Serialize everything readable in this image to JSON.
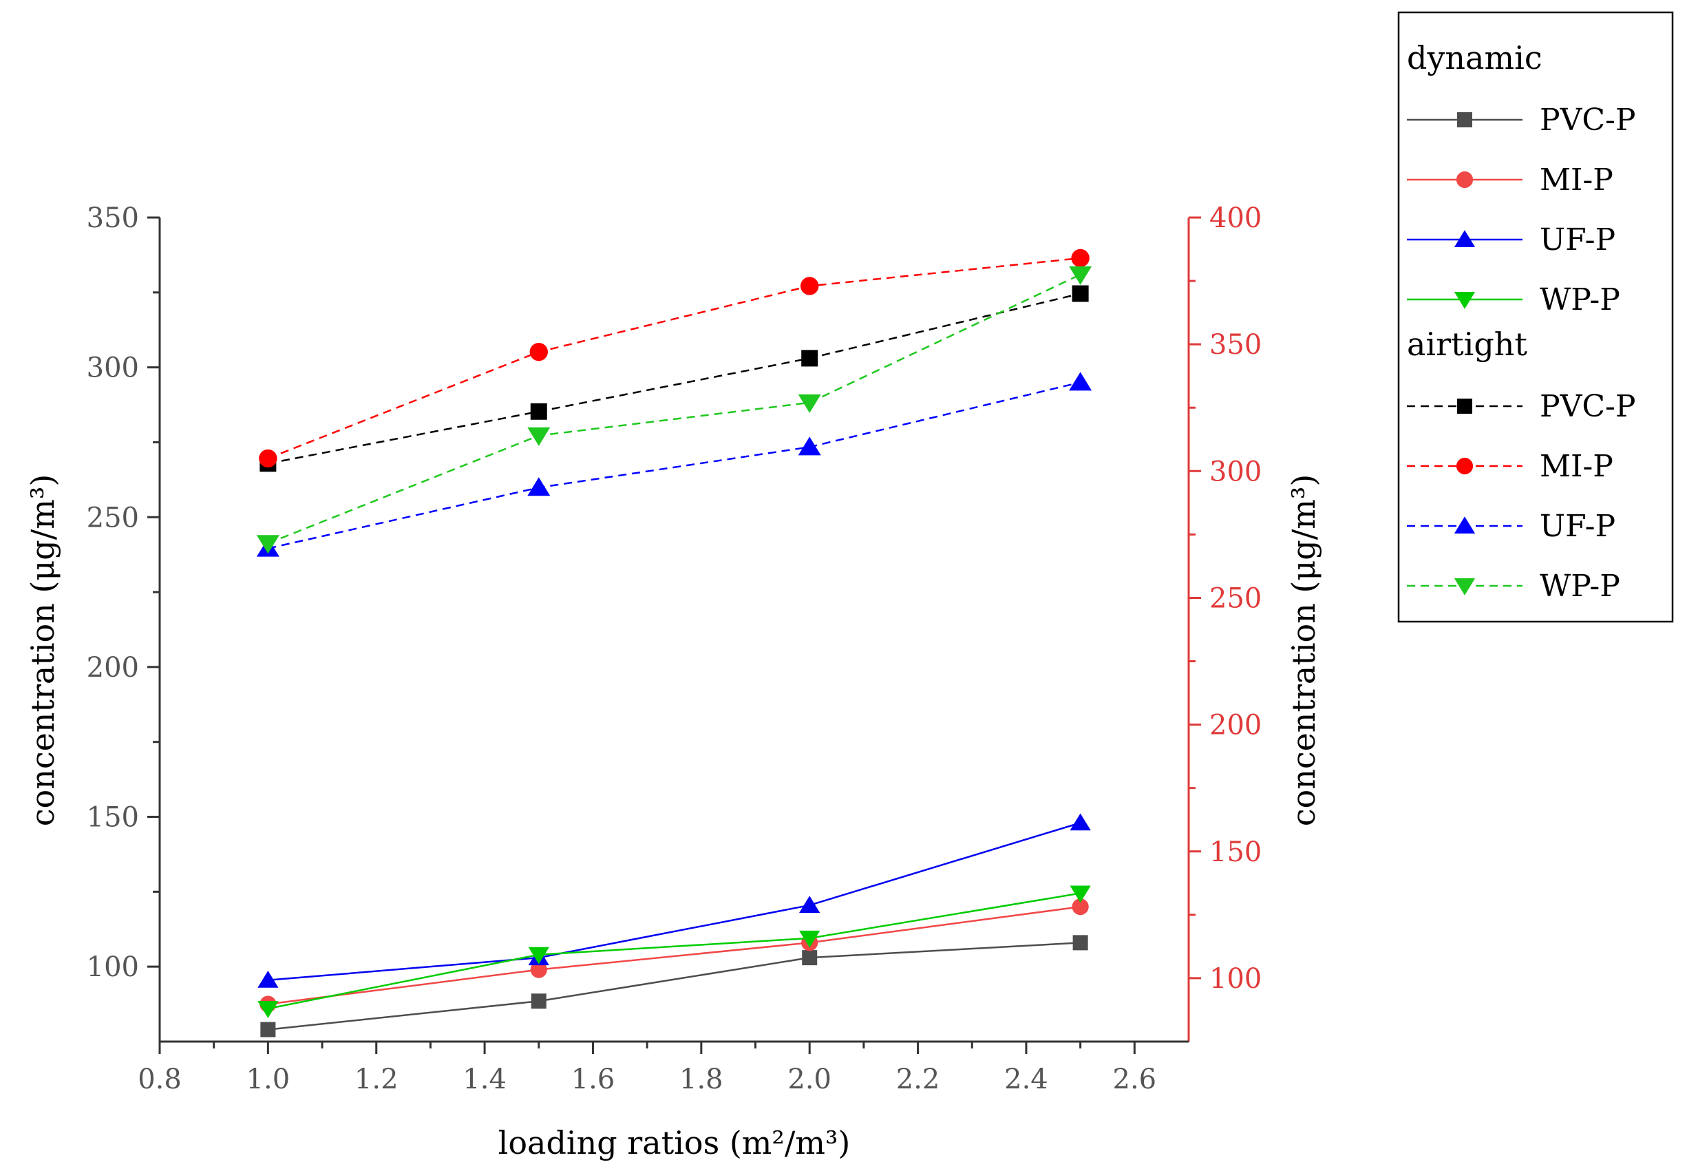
{
  "chart_data": {
    "type": "line",
    "xlabel": "loading ratios (m²/m³)",
    "ylabel_left": "concentration (μg/m³)",
    "ylabel_right": "concentration (μg/m³)",
    "xlim": [
      0.8,
      2.7
    ],
    "xticks": [
      "0.8",
      "1.0",
      "1.2",
      "1.4",
      "1.6",
      "1.8",
      "2.0",
      "2.2",
      "2.4",
      "2.6"
    ],
    "ylim_left": [
      75,
      350
    ],
    "yticks_left": [
      "100",
      "150",
      "200",
      "250",
      "300",
      "350"
    ],
    "ylim_right": [
      75,
      400
    ],
    "yticks_right": [
      "100",
      "150",
      "200",
      "250",
      "300",
      "350",
      "400"
    ],
    "x": [
      1.0,
      1.5,
      2.0,
      2.5
    ],
    "groups": [
      {
        "name": "dynamic",
        "axis": "left",
        "series": [
          {
            "name": "PVC-P",
            "color": "#4d4d4d",
            "marker": "square",
            "values": [
              79,
              88.5,
              103,
              108
            ]
          },
          {
            "name": "MI-P",
            "color": "#f04747",
            "marker": "circle",
            "values": [
              87.5,
              99,
              108,
              120
            ]
          },
          {
            "name": "UF-P",
            "color": "#0000f0",
            "marker": "triangle-up",
            "values": [
              95.5,
              103,
              120.5,
              148
            ]
          },
          {
            "name": "WP-P",
            "color": "#00cc00",
            "marker": "triangle-down",
            "values": [
              86,
              104,
              109.5,
              124.5
            ]
          }
        ]
      },
      {
        "name": "airtight",
        "axis": "right",
        "series": [
          {
            "name": "PVC-P",
            "color": "#000000",
            "marker": "square",
            "values": [
              303,
              323.5,
              344.5,
              370
            ]
          },
          {
            "name": "MI-P",
            "color": "#ff0000",
            "marker": "circle",
            "values": [
              305,
              347,
              373,
              384
            ]
          },
          {
            "name": "UF-P",
            "color": "#0000ff",
            "marker": "triangle-up",
            "values": [
              269.5,
              293.5,
              309.5,
              335
            ]
          },
          {
            "name": "WP-P",
            "color": "#1ec81e",
            "marker": "triangle-down",
            "values": [
              271.5,
              314,
              327,
              377.5
            ]
          }
        ]
      }
    ],
    "legend": {
      "position": "top-right",
      "groups": [
        {
          "title": "dynamic",
          "entries": [
            "PVC-P",
            "MI-P",
            "UF-P",
            "WP-P"
          ]
        },
        {
          "title": "airtight",
          "entries": [
            "PVC-P",
            "MI-P",
            "UF-P",
            "WP-P"
          ]
        }
      ]
    },
    "colors": {
      "left_axis": "#333333",
      "left_tick_label": "#555555",
      "right_axis": "#e03a3a",
      "axis_title": "#000000"
    }
  }
}
